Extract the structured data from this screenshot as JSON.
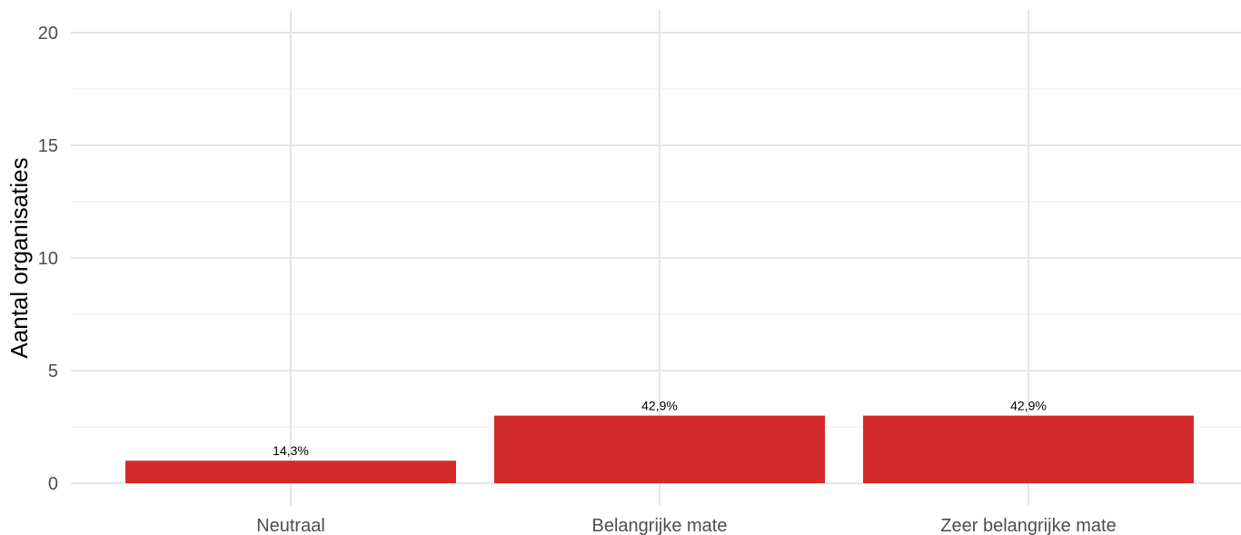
{
  "chart_data": {
    "type": "bar",
    "categories": [
      "Neutraal",
      "Belangrijke mate",
      "Zeer belangrijke mate"
    ],
    "values": [
      1,
      3,
      3
    ],
    "data_labels": [
      "14,3%",
      "42,9%",
      "42,9%"
    ],
    "title": "",
    "xlabel": "",
    "ylabel": "Aantal organisaties",
    "ylim": [
      0,
      20
    ],
    "yticks": [
      0,
      5,
      10,
      15,
      20
    ],
    "ytick_labels": [
      "0",
      "5",
      "10",
      "15",
      "20"
    ],
    "grid": true,
    "bar_color": "#d32b2b"
  }
}
